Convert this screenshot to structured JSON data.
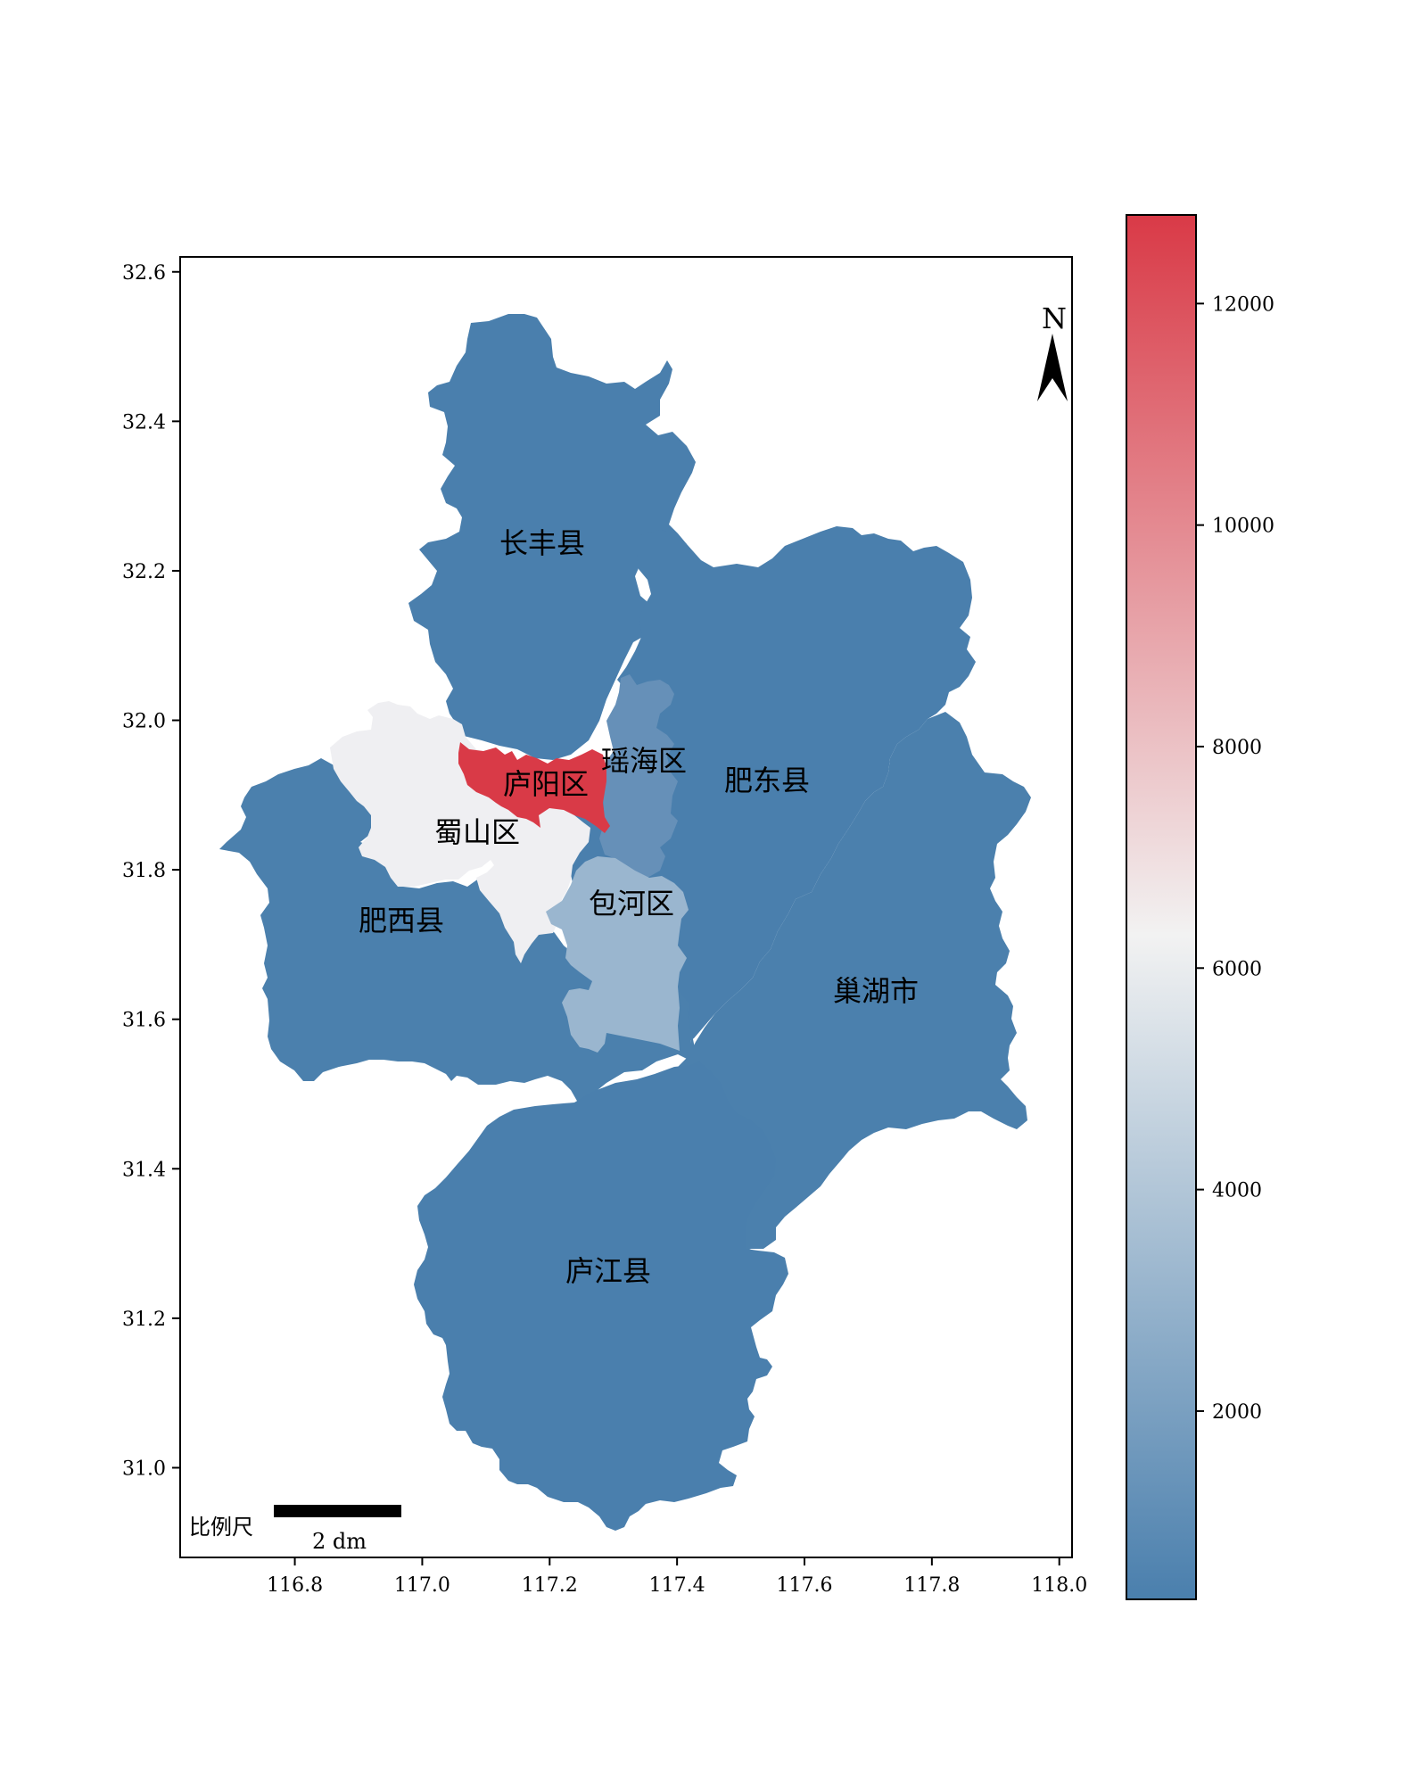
{
  "map": {
    "x_ticks": [
      "116.8",
      "117.0",
      "117.2",
      "117.4",
      "117.6",
      "117.8",
      "118.0"
    ],
    "x_tick_values": [
      116.8,
      117.0,
      117.2,
      117.4,
      117.6,
      117.8,
      118.0
    ],
    "y_ticks": [
      "32.6",
      "32.4",
      "32.2",
      "32.0",
      "31.8",
      "31.6",
      "31.4",
      "31.2",
      "31.0"
    ],
    "y_tick_values": [
      32.6,
      32.4,
      32.2,
      32.0,
      31.8,
      31.6,
      31.4,
      31.2,
      31.0
    ],
    "xlim": [
      116.62,
      118.02
    ],
    "ylim": [
      30.88,
      32.62
    ],
    "regions": [
      {
        "name": "长丰县",
        "value": 400,
        "color": "#4a7fad"
      },
      {
        "name": "肥东县",
        "value": 900,
        "color": "#4a7fad"
      },
      {
        "name": "肥西县",
        "value": 1100,
        "color": "#4b80ad"
      },
      {
        "name": "巢湖市",
        "value": 1000,
        "color": "#4b80ad"
      },
      {
        "name": "庐江县",
        "value": 300,
        "color": "#4a7fad"
      },
      {
        "name": "蜀山区",
        "value": 6200,
        "color": "#efeff2"
      },
      {
        "name": "包河区",
        "value": 3800,
        "color": "#9ab6cf"
      },
      {
        "name": "瑶海区",
        "value": 1800,
        "color": "#6690b8"
      },
      {
        "name": "庐阳区",
        "value": 12800,
        "color": "#d93a47"
      }
    ],
    "north_label": "N",
    "scale_bar": {
      "title": "比例尺",
      "unit_label": "2 dm"
    }
  },
  "colorbar": {
    "ticks": [
      "12000",
      "10000",
      "8000",
      "6000",
      "4000",
      "2000"
    ],
    "tick_values": [
      12000,
      10000,
      8000,
      6000,
      4000,
      2000
    ],
    "vmin": 300,
    "vmax": 12800,
    "colors": [
      "#4a7fad",
      "#f2f2f2",
      "#d93a47"
    ]
  }
}
